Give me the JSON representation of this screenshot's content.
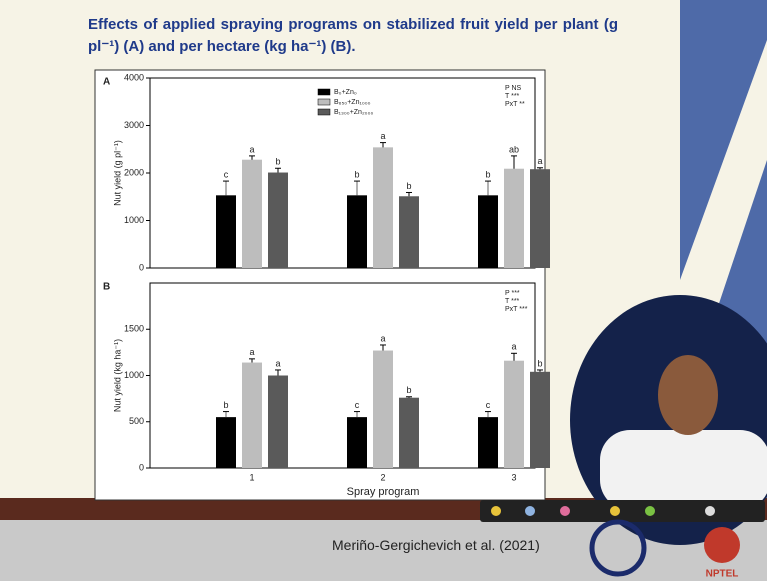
{
  "slide": {
    "title": "Effects of applied spraying programs on stabilized fruit yield per plant (g pl⁻¹) (A) and per hectare (kg ha⁻¹) (B).",
    "citation": "Meriño-Gergichevich et al. (2021)",
    "logo": "NPTEL"
  },
  "chart_data": [
    {
      "type": "bar",
      "panel": "A",
      "y_label": "Nut yield (g pl⁻¹)",
      "ylim": [
        0,
        4000
      ],
      "yticks": [
        0,
        1000,
        2000,
        3000,
        4000
      ],
      "annotations": [
        "P NS",
        "T ***",
        "PxT **"
      ],
      "series": [
        {
          "name": "B₀+Zn₀",
          "color": "#000000",
          "values": [
            1530,
            1530,
            1530
          ],
          "errors": [
            300,
            300,
            300
          ],
          "letters": [
            "c",
            "b",
            "b"
          ]
        },
        {
          "name": "B₆₅₀+Zn₁₀₀₀",
          "color": "#bdbdbd",
          "values": [
            2280,
            2540,
            2090
          ],
          "errors": [
            80,
            100,
            270
          ],
          "letters": [
            "a",
            "a",
            "ab"
          ]
        },
        {
          "name": "B₁₃₀₀+Zn₂₀₀₀",
          "color": "#5a5a5a",
          "values": [
            2010,
            1510,
            2080
          ],
          "errors": [
            90,
            80,
            30
          ],
          "letters": [
            "b",
            "b",
            "a"
          ]
        }
      ]
    },
    {
      "type": "bar",
      "panel": "B",
      "y_label": "Nut yield (kg ha⁻¹)",
      "x_label": "Spray program",
      "categories": [
        "1",
        "2",
        "3"
      ],
      "ylim": [
        0,
        2000
      ],
      "yticks": [
        0,
        500,
        1000,
        1500
      ],
      "annotations": [
        "P ***",
        "T ***",
        "PxT ***"
      ],
      "series": [
        {
          "color": "#000000",
          "values": [
            550,
            550,
            550
          ],
          "errors": [
            60,
            60,
            60
          ],
          "letters": [
            "b",
            "c",
            "c"
          ]
        },
        {
          "color": "#bdbdbd",
          "values": [
            1140,
            1270,
            1160
          ],
          "errors": [
            40,
            60,
            80
          ],
          "letters": [
            "a",
            "a",
            "a"
          ]
        },
        {
          "color": "#5a5a5a",
          "values": [
            1000,
            760,
            1040
          ],
          "errors": [
            60,
            10,
            20
          ],
          "letters": [
            "a",
            "b",
            "b"
          ]
        }
      ]
    }
  ]
}
